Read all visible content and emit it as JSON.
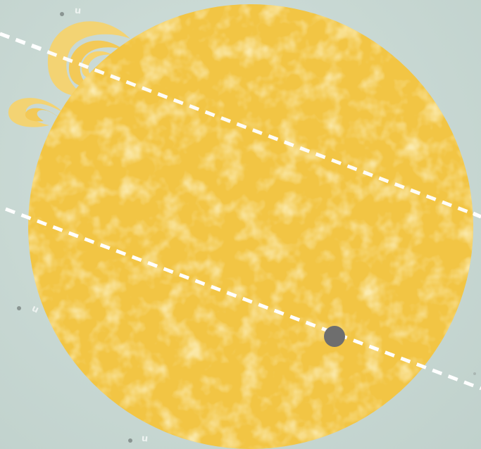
{
  "scene": {
    "background_color": "#c7d8d4",
    "sun_color": "#f2c544",
    "sun_mottle_color": "#f6d36e",
    "prominence_color": "#f6d36e",
    "orbit_line_color": "#ffffff",
    "planet_color": "#6e6e6e",
    "star_marker_color": "#8a9592"
  },
  "star_labels": [
    {
      "name": "star-marker-top",
      "text": "u"
    },
    {
      "name": "star-marker-left",
      "text": "u"
    },
    {
      "name": "star-marker-bottom",
      "text": "u"
    }
  ]
}
